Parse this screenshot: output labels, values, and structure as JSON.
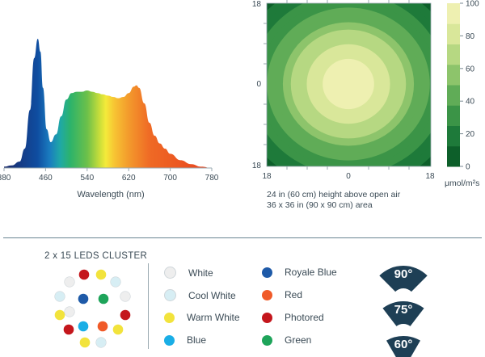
{
  "chart_data": [
    {
      "type": "area",
      "xlabel": "Wavelength (nm)",
      "ylabel": "",
      "xlim": [
        380,
        780
      ],
      "xticks": [
        "380",
        "460",
        "540",
        "620",
        "700",
        "780"
      ],
      "x": [
        380,
        395,
        410,
        420,
        430,
        438,
        445,
        450,
        455,
        462,
        470,
        480,
        490,
        500,
        510,
        520,
        530,
        540,
        550,
        560,
        570,
        580,
        590,
        600,
        610,
        620,
        630,
        635,
        640,
        650,
        660,
        670,
        680,
        690,
        700,
        720,
        740,
        760,
        780
      ],
      "values": [
        0.01,
        0.02,
        0.05,
        0.15,
        0.45,
        0.85,
        1.0,
        0.9,
        0.62,
        0.3,
        0.2,
        0.26,
        0.4,
        0.53,
        0.58,
        0.59,
        0.59,
        0.6,
        0.59,
        0.58,
        0.57,
        0.56,
        0.55,
        0.54,
        0.55,
        0.58,
        0.63,
        0.64,
        0.62,
        0.5,
        0.35,
        0.25,
        0.19,
        0.15,
        0.11,
        0.06,
        0.03,
        0.01,
        0.0
      ]
    },
    {
      "type": "heatmap",
      "xticks": [
        "18",
        "0",
        "18"
      ],
      "yticks": [
        "18",
        "0",
        "18"
      ],
      "colorbar": {
        "ticks": [
          "0",
          "20",
          "40",
          "60",
          "80",
          "100"
        ],
        "range": [
          0,
          100
        ],
        "unit": "μmol/m²s"
      },
      "colors": [
        "#0d5f2a",
        "#1e7a3a",
        "#3b9447",
        "#60ac57",
        "#8dc46b",
        "#b6d882",
        "#d9e79a",
        "#eef0b1"
      ],
      "notes": [
        "24 in (60 cm) height above open air",
        "36 x 36 in (90 x 90 cm) area"
      ]
    }
  ],
  "cluster": {
    "title": "2 x 15 LEDS CLUSTER",
    "legend": [
      {
        "label": "White",
        "color": "#eeeeee"
      },
      {
        "label": "Cool White",
        "color": "#d7eef4"
      },
      {
        "label": "Warm White",
        "color": "#f2e33c"
      },
      {
        "label": "Blue",
        "color": "#1aaee6"
      },
      {
        "label": "Royale Blue",
        "color": "#1e5aa8"
      },
      {
        "label": "Red",
        "color": "#f05a28"
      },
      {
        "label": "Photored",
        "color": "#c4161c"
      },
      {
        "label": "Green",
        "color": "#1ea45a"
      }
    ]
  },
  "beam_angles": [
    "90°",
    "75°",
    "60°"
  ]
}
